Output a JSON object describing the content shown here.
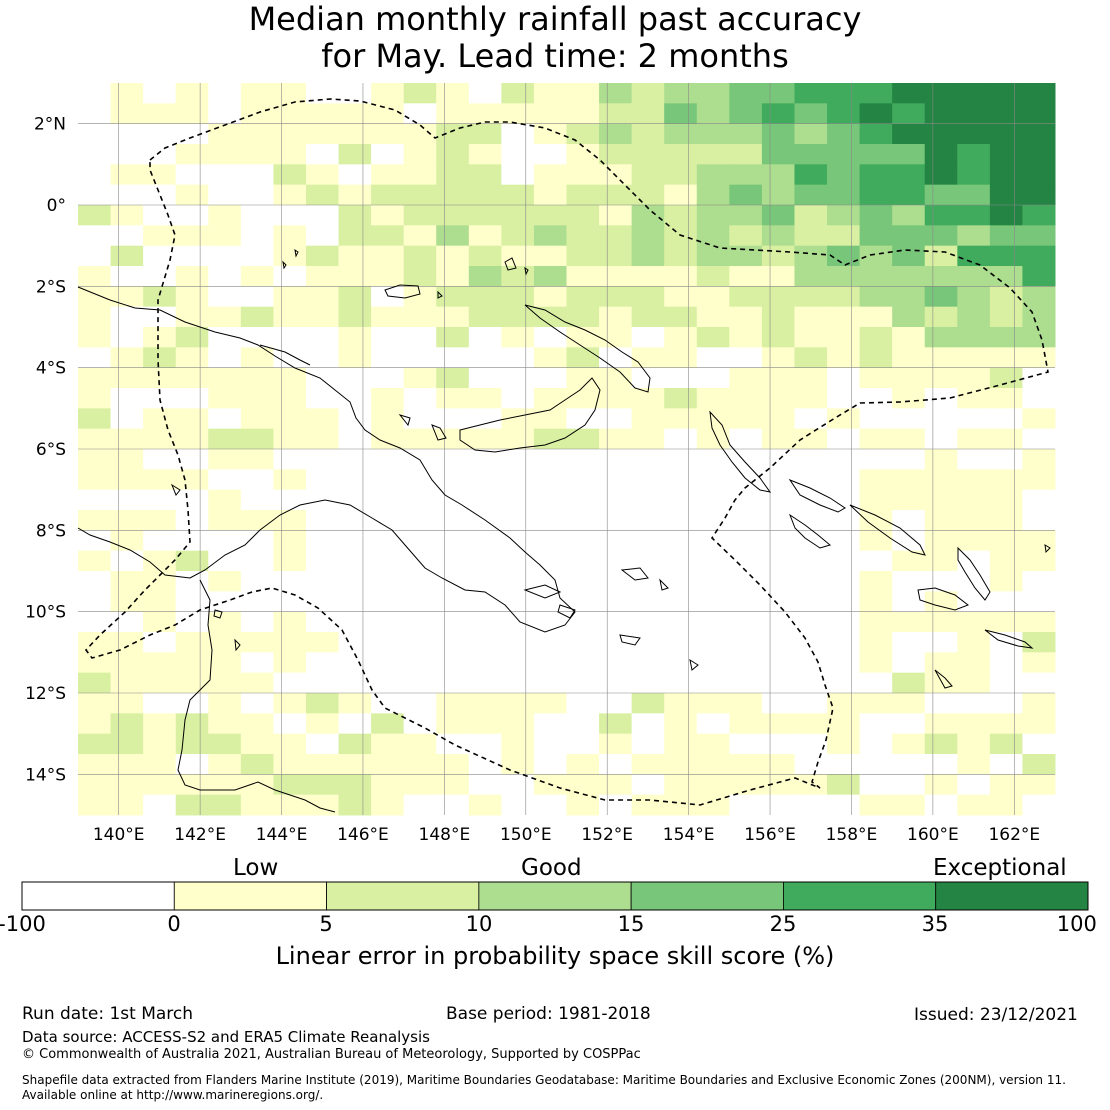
{
  "title": {
    "line1": "Median monthly rainfall past accuracy",
    "line2": "for May. Lead time: 2 months"
  },
  "map": {
    "lon_min": 139,
    "lon_max": 163,
    "lat_min": -15,
    "lat_max": 3,
    "x_ticks": [
      {
        "value": 140,
        "label": "140°E"
      },
      {
        "value": 142,
        "label": "142°E"
      },
      {
        "value": 144,
        "label": "144°E"
      },
      {
        "value": 146,
        "label": "146°E"
      },
      {
        "value": 148,
        "label": "148°E"
      },
      {
        "value": 150,
        "label": "150°E"
      },
      {
        "value": 152,
        "label": "152°E"
      },
      {
        "value": 154,
        "label": "154°E"
      },
      {
        "value": 156,
        "label": "156°E"
      },
      {
        "value": 158,
        "label": "158°E"
      },
      {
        "value": 160,
        "label": "160°E"
      },
      {
        "value": 162,
        "label": "162°E"
      }
    ],
    "y_ticks": [
      {
        "value": 2,
        "label": "2°N"
      },
      {
        "value": 0,
        "label": "0°"
      },
      {
        "value": -2,
        "label": "2°S"
      },
      {
        "value": -4,
        "label": "4°S"
      },
      {
        "value": -6,
        "label": "6°S"
      },
      {
        "value": -8,
        "label": "8°S"
      },
      {
        "value": -10,
        "label": "10°S"
      },
      {
        "value": -12,
        "label": "12°S"
      },
      {
        "value": -14,
        "label": "14°S"
      }
    ]
  },
  "colorbar": {
    "category_labels": {
      "low": "Low",
      "good": "Good",
      "exceptional": "Exceptional"
    },
    "ticks": [
      "-100",
      "0",
      "5",
      "10",
      "15",
      "25",
      "35",
      "100"
    ],
    "colors": [
      "#ffffff",
      "#ffffcc",
      "#d9f0a3",
      "#addd8e",
      "#78c679",
      "#41ab5d",
      "#238443"
    ],
    "title": "Linear error in probability space skill score (%)"
  },
  "footer": {
    "run_date": "Run date: 1st March",
    "base_period": "Base period: 1981-2018",
    "issued": "Issued: 23/12/2021",
    "data_source": "Data source: ACCESS-S2 and ERA5 Climate Reanalysis",
    "copyright": "© Commonwealth of Australia 2021, Australian Bureau of Meteorology, Supported by COSPPac",
    "shapefile_line1": "Shapefile data extracted from Flanders Marine Institute (2019), Maritime Boundaries Geodatabase: Maritime Boundaries and Exclusive Economic Zones (200NM), version 11.",
    "shapefile_line2": "Available online at http://www.marineregions.org/."
  }
}
